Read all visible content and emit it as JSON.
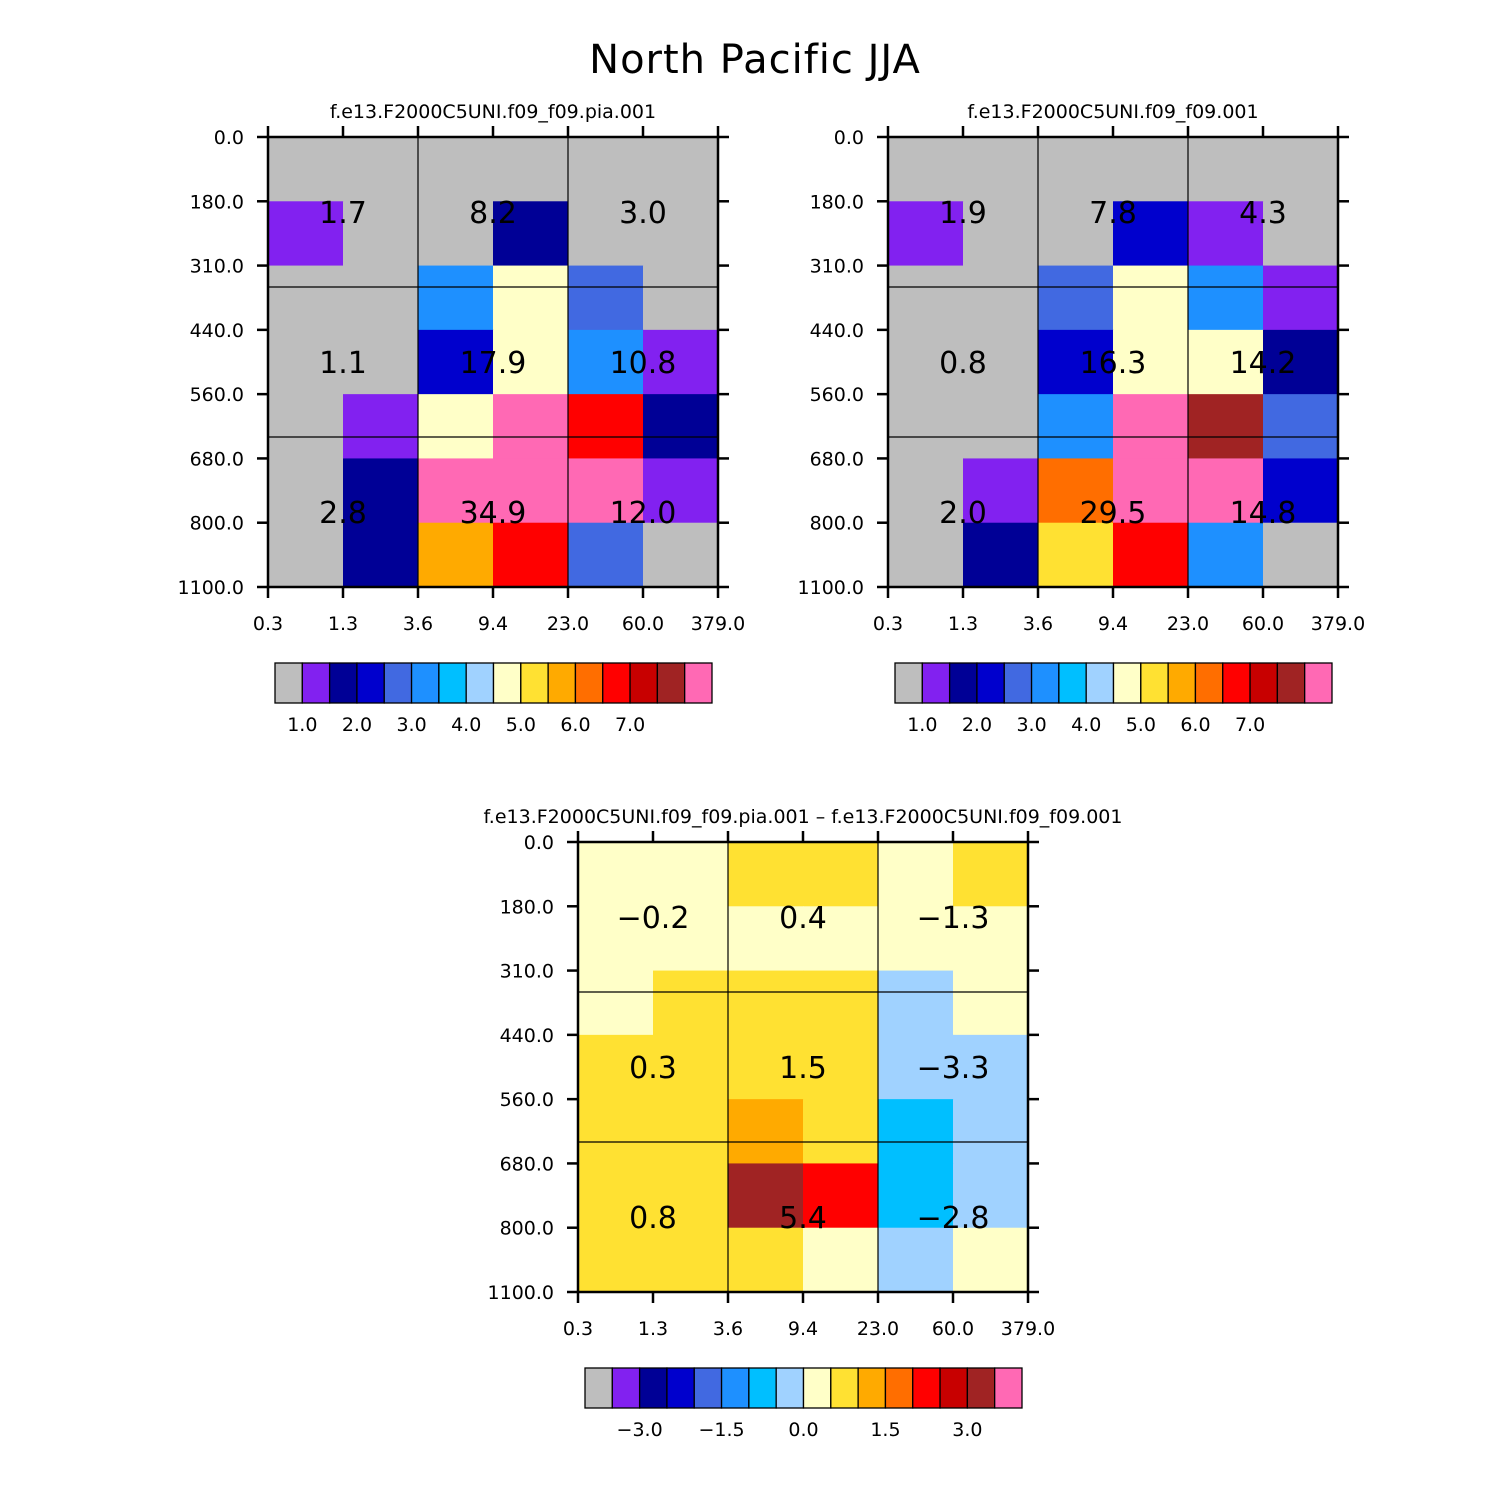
{
  "chart_data": {
    "title": "North Pacific JJA",
    "x_ticks": [
      "0.3",
      "1.3",
      "3.6",
      "9.4",
      "23.0",
      "60.0",
      "379.0"
    ],
    "y_ticks": [
      "0.0",
      "180.0",
      "310.0",
      "440.0",
      "560.0",
      "680.0",
      "800.0",
      "1100.0"
    ],
    "panels": [
      {
        "type": "heatmap",
        "title": "f.e13.F2000C5UNI.f09_f09.pia.001",
        "colorbar_labels": [
          "1.0",
          "2.0",
          "3.0",
          "4.0",
          "5.0",
          "6.0",
          "7.0"
        ],
        "cells": [
          [
            0,
            0,
            0,
            0,
            0,
            0
          ],
          [
            1,
            0,
            0,
            2,
            0,
            0
          ],
          [
            0,
            0,
            5,
            8,
            4,
            0
          ],
          [
            0,
            0,
            3,
            8,
            5,
            1
          ],
          [
            0,
            1,
            8,
            15,
            12,
            2
          ],
          [
            0,
            2,
            15,
            15,
            15,
            1
          ],
          [
            0,
            2,
            10,
            12,
            4,
            0
          ]
        ],
        "box_values": [
          [
            "1.7",
            "8.2",
            "3.0"
          ],
          [
            "1.1",
            "17.9",
            "10.8"
          ],
          [
            "2.8",
            "34.9",
            "12.0"
          ]
        ]
      },
      {
        "type": "heatmap",
        "title": "f.e13.F2000C5UNI.f09_f09.001",
        "colorbar_labels": [
          "1.0",
          "2.0",
          "3.0",
          "4.0",
          "5.0",
          "6.0",
          "7.0"
        ],
        "cells": [
          [
            0,
            0,
            0,
            0,
            0,
            0
          ],
          [
            1,
            0,
            0,
            3,
            1,
            0
          ],
          [
            0,
            0,
            4,
            8,
            5,
            1
          ],
          [
            0,
            0,
            3,
            8,
            8,
            2
          ],
          [
            0,
            0,
            5,
            15,
            14,
            4
          ],
          [
            0,
            1,
            11,
            15,
            15,
            3
          ],
          [
            0,
            2,
            9,
            12,
            5,
            0
          ]
        ],
        "box_values": [
          [
            "1.9",
            "7.8",
            "4.3"
          ],
          [
            "0.8",
            "16.3",
            "14.2"
          ],
          [
            "2.0",
            "29.5",
            "14.8"
          ]
        ]
      },
      {
        "type": "heatmap",
        "title": "f.e13.F2000C5UNI.f09_f09.pia.001 – f.e13.F2000C5UNI.f09_f09.001",
        "colorbar_labels": [
          "−3.0",
          "−1.5",
          "0.0",
          "1.5",
          "3.0"
        ],
        "cells": [
          [
            8,
            8,
            9,
            9,
            8,
            9
          ],
          [
            8,
            8,
            8,
            8,
            8,
            8
          ],
          [
            8,
            9,
            9,
            9,
            7,
            8
          ],
          [
            9,
            9,
            9,
            9,
            7,
            7
          ],
          [
            9,
            9,
            10,
            9,
            6,
            7
          ],
          [
            9,
            9,
            14,
            12,
            6,
            7
          ],
          [
            9,
            9,
            9,
            8,
            7,
            8
          ]
        ],
        "box_values": [
          [
            "−0.2",
            "0.4",
            "−1.3"
          ],
          [
            "0.3",
            "1.5",
            "−3.3"
          ],
          [
            "0.8",
            "5.4",
            "−2.8"
          ]
        ]
      }
    ],
    "palette": [
      "#bebebe",
      "#8221f0",
      "#000096",
      "#0000cd",
      "#4169e1",
      "#1e90ff",
      "#00bfff",
      "#a0d2ff",
      "#ffffc8",
      "#ffe132",
      "#ffaa00",
      "#ff6e00",
      "#ff0000",
      "#c80000",
      "#a02323",
      "#ff69b4"
    ]
  }
}
